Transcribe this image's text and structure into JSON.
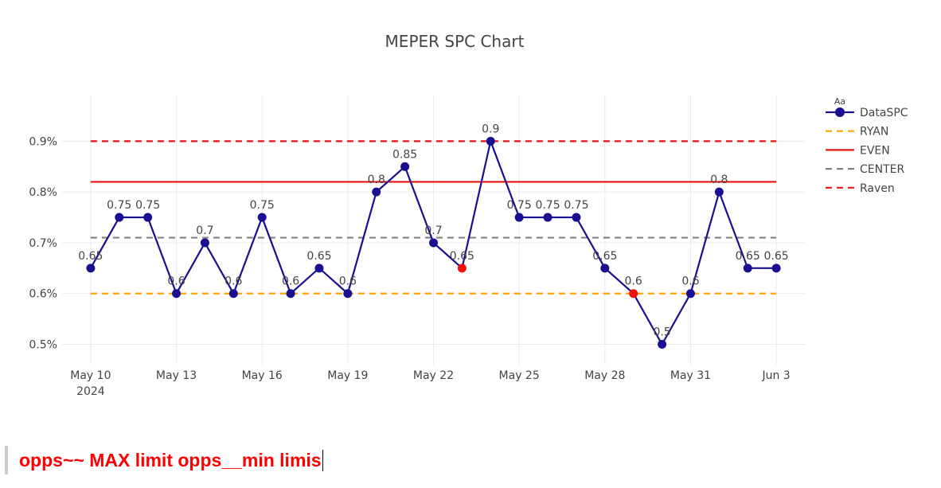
{
  "chart_data": {
    "type": "line",
    "title": "MEPER SPC Chart",
    "y_tick_labels": [
      "0.5%",
      "0.6%",
      "0.7%",
      "0.8%",
      "0.9%"
    ],
    "y_ticks": [
      0.5,
      0.6,
      0.7,
      0.8,
      0.9
    ],
    "ylim": [
      0.46,
      0.99
    ],
    "xlim": [
      "2024-05-09",
      "2024-06-04"
    ],
    "x_tick_dates": [
      "2024-05-10",
      "2024-05-13",
      "2024-05-16",
      "2024-05-19",
      "2024-05-22",
      "2024-05-25",
      "2024-05-28",
      "2024-05-31",
      "2024-06-03"
    ],
    "x_tick_labels": [
      "May 10",
      "May 13",
      "May 16",
      "May 19",
      "May 22",
      "May 25",
      "May 28",
      "May 31",
      "Jun 3"
    ],
    "x_year_label": "2024",
    "grid": true,
    "legend_position": "top-right",
    "series": [
      {
        "name": "DataSPC",
        "color": "#1a0f91",
        "x": [
          "2024-05-10",
          "2024-05-11",
          "2024-05-12",
          "2024-05-13",
          "2024-05-14",
          "2024-05-15",
          "2024-05-16",
          "2024-05-17",
          "2024-05-18",
          "2024-05-19",
          "2024-05-20",
          "2024-05-21",
          "2024-05-22",
          "2024-05-23",
          "2024-05-24",
          "2024-05-25",
          "2024-05-26",
          "2024-05-27",
          "2024-05-28",
          "2024-05-29",
          "2024-05-30",
          "2024-05-31",
          "2024-06-01",
          "2024-06-02",
          "2024-06-03"
        ],
        "y": [
          0.65,
          0.75,
          0.75,
          0.6,
          0.7,
          0.6,
          0.75,
          0.6,
          0.65,
          0.6,
          0.8,
          0.85,
          0.7,
          0.65,
          0.9,
          0.75,
          0.75,
          0.75,
          0.65,
          0.6,
          0.5,
          0.6,
          0.8,
          0.65,
          0.65
        ],
        "labels": [
          "0.65",
          "0.75",
          "0.75",
          "0.6",
          "0.7",
          "0.6",
          "0.75",
          "0.6",
          "0.65",
          "0.6",
          "0.8",
          "0.85",
          "0.7",
          "0.65",
          "0.9",
          "0.75",
          "0.75",
          "0.75",
          "0.65",
          "0.6",
          "0.5",
          "0.6",
          "0.8",
          "0.65",
          "0.65"
        ],
        "highlight_color": "#ee1111",
        "highlighted_dates": [
          "2024-05-23",
          "2024-05-29"
        ]
      },
      {
        "name": "RYAN",
        "color": "#ffa500",
        "dash": "dashed",
        "value": 0.6
      },
      {
        "name": "EVEN",
        "color": "#ee1111",
        "dash": "solid",
        "value": 0.82
      },
      {
        "name": "CENTER",
        "color": "#808080",
        "dash": "dashed",
        "value": 0.71
      },
      {
        "name": "Raven",
        "color": "#ee1111",
        "dash": "dashed",
        "value": 0.9
      }
    ],
    "legend_header": "Aa"
  },
  "footer": {
    "text": "opps~~ MAX limit opps__min limis"
  }
}
